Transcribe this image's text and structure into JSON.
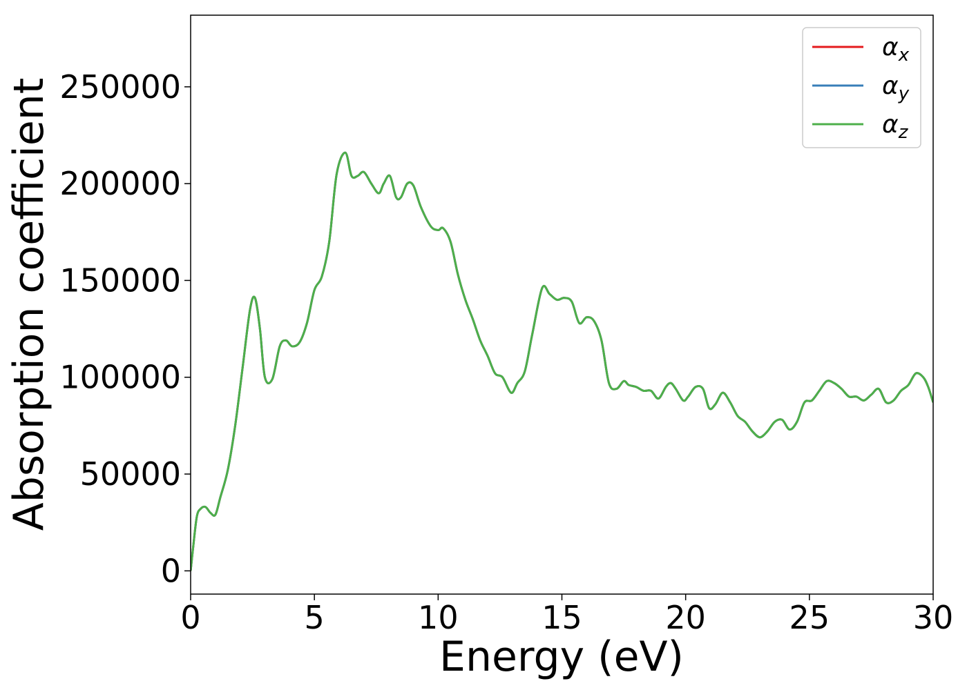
{
  "chart_data": {
    "type": "line",
    "title": "",
    "xlabel": "Energy (eV)",
    "ylabel": "Absorption coefficient",
    "xlim": [
      0,
      30
    ],
    "ylim": [
      -12000,
      287000
    ],
    "xticks": [
      0,
      5,
      10,
      15,
      20,
      25,
      30
    ],
    "xtick_labels": [
      "0",
      "5",
      "10",
      "15",
      "20",
      "25",
      "30"
    ],
    "yticks": [
      0,
      50000,
      100000,
      150000,
      200000,
      250000
    ],
    "ytick_labels": [
      "0",
      "50000",
      "100000",
      "150000",
      "200000",
      "250000"
    ],
    "grid": false,
    "legend_position": "top-right",
    "x": [
      0,
      0.1,
      0.25,
      0.4,
      0.6,
      0.8,
      1.0,
      1.2,
      1.5,
      1.8,
      2.1,
      2.4,
      2.6,
      2.8,
      3.0,
      3.3,
      3.6,
      3.85,
      4.1,
      4.4,
      4.7,
      5.0,
      5.3,
      5.6,
      5.9,
      6.25,
      6.5,
      6.75,
      7.0,
      7.3,
      7.6,
      7.8,
      8.05,
      8.3,
      8.5,
      8.75,
      9.0,
      9.3,
      9.7,
      10.0,
      10.2,
      10.5,
      10.8,
      11.1,
      11.4,
      11.7,
      12.0,
      12.3,
      12.6,
      12.95,
      13.2,
      13.5,
      13.8,
      14.2,
      14.5,
      14.8,
      15.1,
      15.4,
      15.7,
      16.0,
      16.3,
      16.6,
      16.9,
      17.2,
      17.5,
      17.7,
      18.0,
      18.3,
      18.6,
      18.9,
      19.2,
      19.4,
      19.6,
      19.9,
      20.1,
      20.4,
      20.7,
      20.95,
      21.2,
      21.5,
      21.8,
      22.1,
      22.4,
      22.7,
      23.0,
      23.3,
      23.6,
      23.9,
      24.2,
      24.5,
      24.8,
      25.1,
      25.4,
      25.7,
      26.0,
      26.3,
      26.6,
      26.9,
      27.2,
      27.5,
      27.8,
      28.1,
      28.4,
      28.7,
      29.0,
      29.3,
      29.6,
      29.8,
      30.0
    ],
    "series": [
      {
        "name": "αx",
        "color": "#e41a1c",
        "y": [
          0,
          12000,
          28000,
          32000,
          33000,
          30000,
          29000,
          38000,
          52000,
          75000,
          105000,
          135000,
          141000,
          125000,
          100000,
          99000,
          116000,
          119000,
          116000,
          118000,
          128000,
          145000,
          152000,
          170000,
          205000,
          216000,
          204000,
          204000,
          206000,
          200000,
          195000,
          200000,
          204000,
          193000,
          193000,
          200000,
          199000,
          188000,
          178000,
          176000,
          177000,
          170000,
          153000,
          140000,
          130000,
          119000,
          111000,
          102000,
          100000,
          92000,
          97000,
          103000,
          122000,
          146000,
          143000,
          140000,
          141000,
          139000,
          128000,
          131000,
          129000,
          119000,
          97000,
          94000,
          98000,
          96000,
          95000,
          93000,
          93000,
          89000,
          95000,
          97000,
          94000,
          88000,
          90000,
          95000,
          94000,
          84000,
          86000,
          92000,
          87000,
          80000,
          77000,
          72000,
          69000,
          72000,
          77000,
          78000,
          73000,
          77000,
          87000,
          88000,
          93000,
          98000,
          97000,
          94000,
          90000,
          90000,
          88000,
          91000,
          94000,
          87000,
          88000,
          93000,
          96000,
          102000,
          100000,
          95000,
          87000
        ]
      },
      {
        "name": "αy",
        "color": "#377eb8",
        "y": [
          0,
          12000,
          28000,
          32000,
          33000,
          30000,
          29000,
          38000,
          52000,
          75000,
          105000,
          135000,
          141000,
          125000,
          100000,
          99000,
          116000,
          119000,
          116000,
          118000,
          128000,
          145000,
          152000,
          170000,
          205000,
          216000,
          204000,
          204000,
          206000,
          200000,
          195000,
          200000,
          204000,
          193000,
          193000,
          200000,
          199000,
          188000,
          178000,
          176000,
          177000,
          170000,
          153000,
          140000,
          130000,
          119000,
          111000,
          102000,
          100000,
          92000,
          97000,
          103000,
          122000,
          146000,
          143000,
          140000,
          141000,
          139000,
          128000,
          131000,
          129000,
          119000,
          97000,
          94000,
          98000,
          96000,
          95000,
          93000,
          93000,
          89000,
          95000,
          97000,
          94000,
          88000,
          90000,
          95000,
          94000,
          84000,
          86000,
          92000,
          87000,
          80000,
          77000,
          72000,
          69000,
          72000,
          77000,
          78000,
          73000,
          77000,
          87000,
          88000,
          93000,
          98000,
          97000,
          94000,
          90000,
          90000,
          88000,
          91000,
          94000,
          87000,
          88000,
          93000,
          96000,
          102000,
          100000,
          95000,
          87000
        ]
      },
      {
        "name": "αz",
        "color": "#4daf4a",
        "y": [
          0,
          12000,
          28000,
          32000,
          33000,
          30000,
          29000,
          38000,
          52000,
          75000,
          105000,
          135000,
          141000,
          125000,
          100000,
          99000,
          116000,
          119000,
          116000,
          118000,
          128000,
          145000,
          152000,
          170000,
          205000,
          216000,
          204000,
          204000,
          206000,
          200000,
          195000,
          200000,
          204000,
          193000,
          193000,
          200000,
          199000,
          188000,
          178000,
          176000,
          177000,
          170000,
          153000,
          140000,
          130000,
          119000,
          111000,
          102000,
          100000,
          92000,
          97000,
          103000,
          122000,
          146000,
          143000,
          140000,
          141000,
          139000,
          128000,
          131000,
          129000,
          119000,
          97000,
          94000,
          98000,
          96000,
          95000,
          93000,
          93000,
          89000,
          95000,
          97000,
          94000,
          88000,
          90000,
          95000,
          94000,
          84000,
          86000,
          92000,
          87000,
          80000,
          77000,
          72000,
          69000,
          72000,
          77000,
          78000,
          73000,
          77000,
          87000,
          88000,
          93000,
          98000,
          97000,
          94000,
          90000,
          90000,
          88000,
          91000,
          94000,
          87000,
          88000,
          93000,
          96000,
          102000,
          100000,
          95000,
          87000
        ]
      }
    ],
    "legend": [
      {
        "symbol": "α",
        "subscript": "x",
        "color": "#e41a1c"
      },
      {
        "symbol": "α",
        "subscript": "y",
        "color": "#377eb8"
      },
      {
        "symbol": "α",
        "subscript": "z",
        "color": "#4daf4a"
      }
    ]
  }
}
